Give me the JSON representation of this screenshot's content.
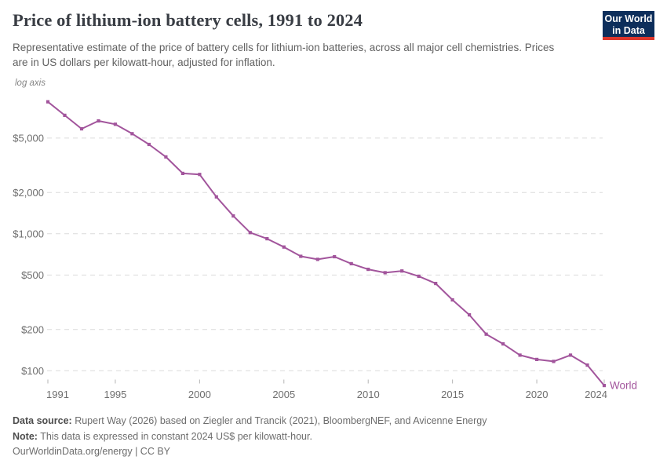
{
  "header": {
    "title": "Price of lithium-ion battery cells, 1991 to 2024",
    "subtitle": "Representative estimate of the price of battery cells for lithium-ion batteries, across all major cell chemistries. Prices are in US dollars per kilowatt-hour, adjusted for inflation.",
    "logo": {
      "line1": "Our World",
      "line2": "in Data",
      "bg_color": "#0d2e5b",
      "stripe_color": "#dd362c"
    }
  },
  "chart": {
    "axis_note": "log axis"
  },
  "chart_data": {
    "type": "line",
    "title": "Price of lithium-ion battery cells, 1991 to 2024",
    "xlabel": "",
    "ylabel": "",
    "y_scale": "log",
    "ylim": [
      78,
      9200
    ],
    "grid": "dashed-horizontal",
    "legend_position": "end-of-line-label",
    "x": [
      1991,
      1992,
      1993,
      1994,
      1995,
      1996,
      1997,
      1998,
      1999,
      2000,
      2001,
      2002,
      2003,
      2004,
      2005,
      2006,
      2007,
      2008,
      2009,
      2010,
      2011,
      2012,
      2013,
      2014,
      2015,
      2016,
      2017,
      2018,
      2019,
      2020,
      2021,
      2022,
      2023,
      2024
    ],
    "series": [
      {
        "name": "World",
        "color": "#a2559c",
        "values": [
          9190,
          7320,
          5840,
          6670,
          6300,
          5380,
          4490,
          3640,
          2760,
          2710,
          1860,
          1350,
          1020,
          920,
          800,
          685,
          650,
          680,
          605,
          550,
          520,
          535,
          490,
          434,
          329,
          256,
          185,
          157,
          130,
          121,
          117,
          130,
          110,
          78
        ]
      }
    ],
    "xticks": [
      1991,
      1995,
      2000,
      2005,
      2010,
      2015,
      2020,
      2024
    ],
    "yticks": [
      {
        "value": 100,
        "label": "$100"
      },
      {
        "value": 200,
        "label": "$200"
      },
      {
        "value": 500,
        "label": "$500"
      },
      {
        "value": 1000,
        "label": "$1,000"
      },
      {
        "value": 2000,
        "label": "$2,000"
      },
      {
        "value": 5000,
        "label": "$5,000"
      }
    ]
  },
  "footer": {
    "datasource_label": "Data source:",
    "datasource_text": " Rupert Way (2026) based on Ziegler and Trancik (2021), BloombergNEF, and Avicenne Energy",
    "note_label": "Note:",
    "note_text": " This data is expressed in constant 2024 US$ per kilowatt-hour.",
    "citation": "OurWorldinData.org/energy | CC BY"
  }
}
